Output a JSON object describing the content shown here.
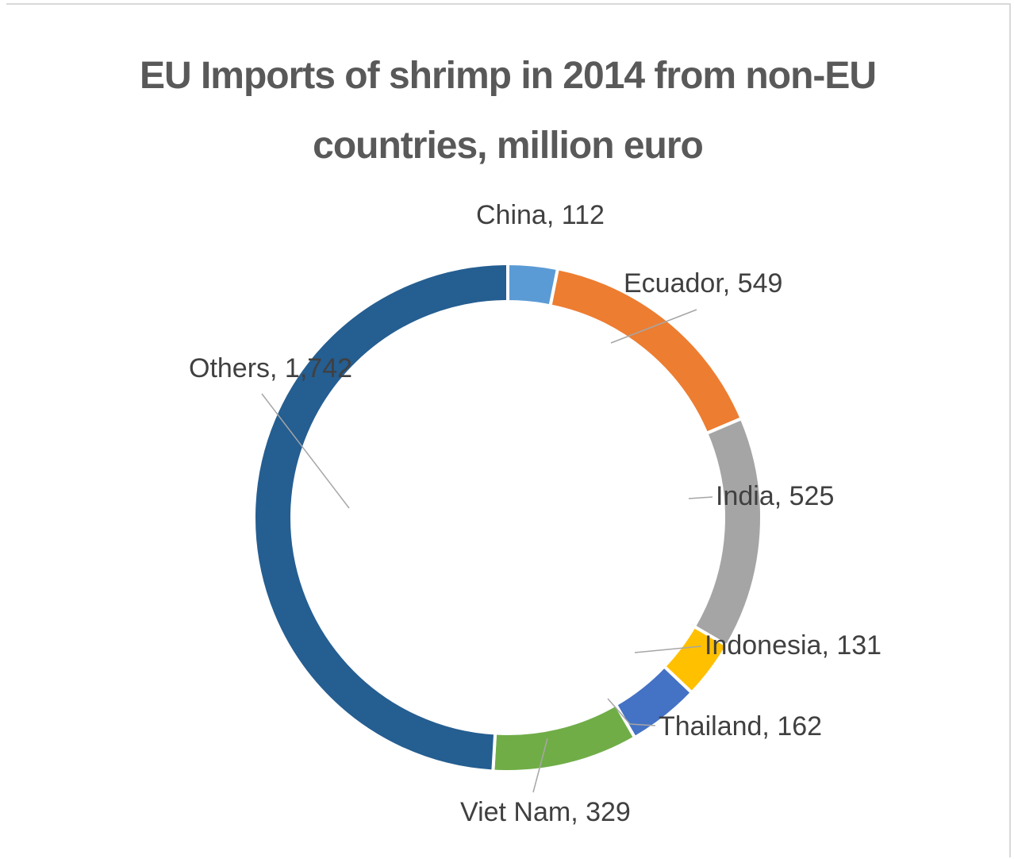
{
  "chart_data": {
    "type": "pie",
    "variant": "donut",
    "title_lines": [
      "EU Imports of shrimp in 2014 from non-EU",
      "countries, million euro"
    ],
    "slices": [
      {
        "name": "China",
        "value": 112,
        "color": "#5b9bd5",
        "label": "China, 112"
      },
      {
        "name": "Ecuador",
        "value": 549,
        "color": "#ed7d31",
        "label": "Ecuador, 549"
      },
      {
        "name": "India",
        "value": 525,
        "color": "#a5a5a5",
        "label": "India, 525"
      },
      {
        "name": "Indonesia",
        "value": 131,
        "color": "#ffc000",
        "label": "Indonesia, 131"
      },
      {
        "name": "Thailand",
        "value": 162,
        "color": "#4472c4",
        "label": "Thailand, 162"
      },
      {
        "name": "Viet Nam",
        "value": 329,
        "color": "#70ad47",
        "label": "Viet Nam, 329"
      },
      {
        "name": "Others",
        "value": 1742,
        "color": "#255e91",
        "label": "Others, 1,742"
      }
    ],
    "legend": "none",
    "data_labels": "outside with leader lines"
  }
}
